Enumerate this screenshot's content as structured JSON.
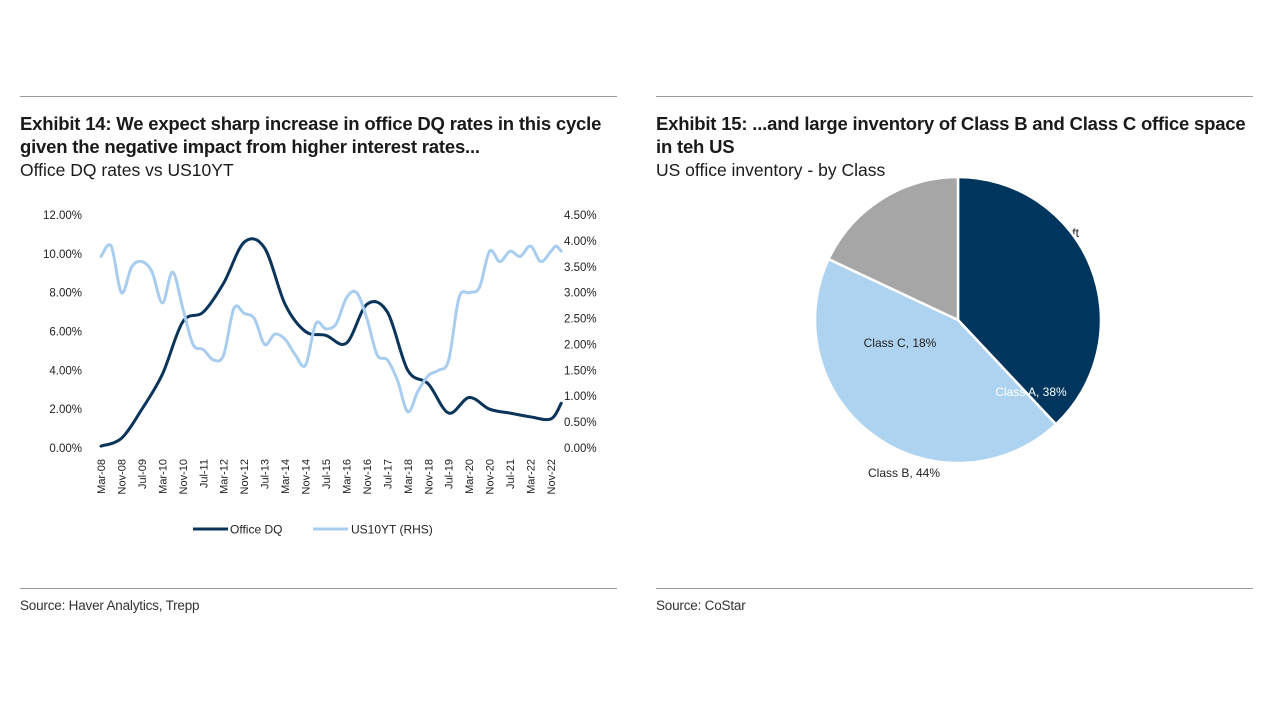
{
  "left": {
    "title": "Exhibit 14: We expect sharp increase in office DQ rates in this cycle given the negative impact from higher interest rates...",
    "subtitle": "Office DQ rates vs US10YT",
    "source": "Source: Haver Analytics, Trepp"
  },
  "right": {
    "title": "Exhibit 15: ...and large inventory of Class B and Class C office space in teh US",
    "subtitle": "US office inventory - by Class",
    "source": "Source: CoStar"
  },
  "chart_data": [
    {
      "type": "line",
      "title": "",
      "x_ticks": [
        "Mar-08",
        "Nov-08",
        "Jul-09",
        "Mar-10",
        "Nov-10",
        "Jul-11",
        "Mar-12",
        "Nov-12",
        "Jul-13",
        "Mar-14",
        "Nov-14",
        "Jul-15",
        "Mar-16",
        "Nov-16",
        "Jul-17",
        "Mar-18",
        "Nov-18",
        "Jul-19",
        "Mar-20",
        "Nov-20",
        "Jul-21",
        "Mar-22",
        "Nov-22"
      ],
      "left_ticks": [
        "0.00%",
        "2.00%",
        "4.00%",
        "6.00%",
        "8.00%",
        "10.00%",
        "12.00%"
      ],
      "right_ticks": [
        "0.00%",
        "0.50%",
        "1.00%",
        "1.50%",
        "2.00%",
        "2.50%",
        "3.00%",
        "3.50%",
        "4.00%",
        "4.50%"
      ],
      "ylim_left": [
        0,
        12
      ],
      "ylim_right": [
        0,
        4.5
      ],
      "colors": {
        "office_dq": "#0a3459",
        "us10yt": "#a9cdef"
      },
      "series": [
        {
          "name": "Office DQ",
          "axis": "left",
          "x": [
            0,
            1,
            2,
            3,
            4,
            5,
            6,
            7,
            8,
            9,
            10,
            11,
            12,
            13,
            14,
            15,
            16,
            17,
            18,
            19,
            20,
            21,
            22,
            22.5
          ],
          "values": [
            0.1,
            0.5,
            2.0,
            3.8,
            6.5,
            7.0,
            8.5,
            10.6,
            10.3,
            7.4,
            6.0,
            5.8,
            5.4,
            7.4,
            7.0,
            4.0,
            3.3,
            1.8,
            2.6,
            2.0,
            1.8,
            1.6,
            1.5,
            2.3
          ]
        },
        {
          "name": "US10YT (RHS)",
          "axis": "right",
          "x": [
            0,
            0.5,
            1,
            1.5,
            2,
            2.5,
            3,
            3.5,
            4,
            4.5,
            5,
            5.5,
            6,
            6.5,
            7,
            7.5,
            8,
            8.5,
            9,
            9.5,
            10,
            10.5,
            11,
            11.5,
            12,
            12.5,
            13,
            13.5,
            14,
            14.5,
            15,
            15.5,
            16,
            16.5,
            17,
            17.5,
            18,
            18.5,
            19,
            19.5,
            20,
            20.5,
            21,
            21.5,
            22,
            22.25,
            22.5
          ],
          "values": [
            3.7,
            3.9,
            3.0,
            3.5,
            3.6,
            3.4,
            2.8,
            3.4,
            2.7,
            2.0,
            1.9,
            1.7,
            1.8,
            2.7,
            2.6,
            2.5,
            2.0,
            2.2,
            2.1,
            1.8,
            1.6,
            2.4,
            2.3,
            2.4,
            2.9,
            3.0,
            2.5,
            1.8,
            1.7,
            1.3,
            0.7,
            1.1,
            1.4,
            1.5,
            1.7,
            2.9,
            3.0,
            3.1,
            3.8,
            3.6,
            3.8,
            3.7,
            3.9,
            3.6,
            3.8,
            3.9,
            3.8
          ]
        }
      ],
      "legend": [
        "Office DQ",
        "US10YT (RHS)"
      ],
      "legend_position": "bottom"
    },
    {
      "type": "pie",
      "title": "Total US Office Inventory - 8.4bn sqft",
      "slices": [
        {
          "label": "Class A, 38%",
          "value": 38,
          "color": "#00355d"
        },
        {
          "label": "Class B, 44%",
          "value": 44,
          "color": "#add3f0"
        },
        {
          "label": "Class C, 18%",
          "value": 18,
          "color": "#a6a6a6"
        }
      ]
    }
  ]
}
